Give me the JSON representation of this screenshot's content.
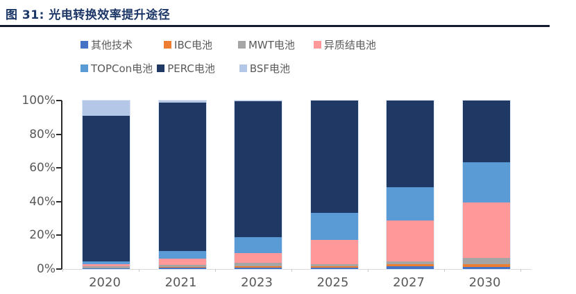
{
  "figure": {
    "title": "图 31:  光电转换效率提升途径"
  },
  "legend": {
    "rows": [
      [
        "其他技术",
        "IBC电池",
        "MWT电池",
        "异质结电池"
      ],
      [
        "TOPCon电池",
        "PERC电池",
        "BSF电池"
      ]
    ]
  },
  "colors": {
    "其他技术": "#4472C4",
    "IBC电池": "#ED7D31",
    "MWT电池": "#A5A5A5",
    "异质结电池": "#FF9999",
    "TOPCon电池": "#5B9BD5",
    "PERC电池": "#1F3864",
    "BSF电池": "#B4C7E7",
    "title": "#1C3667",
    "axis_text": "#595959"
  },
  "chart_data": {
    "type": "bar",
    "stacked": true,
    "title": "光电转换效率提升途径",
    "categories": [
      "2020",
      "2021",
      "2023",
      "2025",
      "2027",
      "2030"
    ],
    "series": [
      {
        "name": "其他技术",
        "color": "#4472C4",
        "values": [
          0.3,
          0.8,
          0.8,
          0.8,
          1.8,
          1.4
        ]
      },
      {
        "name": "IBC电池",
        "color": "#ED7D31",
        "values": [
          0.3,
          0.3,
          0.8,
          0.8,
          1.0,
          1.4
        ]
      },
      {
        "name": "MWT电池",
        "color": "#A5A5A5",
        "values": [
          1.0,
          1.2,
          2.0,
          1.2,
          1.6,
          3.7
        ]
      },
      {
        "name": "异质结电池",
        "color": "#FF9999",
        "values": [
          1.2,
          4.0,
          6.0,
          14.5,
          24.3,
          33.0
        ]
      },
      {
        "name": "TOPCon电池",
        "color": "#5B9BD5",
        "values": [
          1.7,
          4.5,
          9.5,
          16.0,
          19.8,
          24.0
        ]
      },
      {
        "name": "PERC电池",
        "color": "#1F3864",
        "values": [
          86.5,
          88.0,
          80.4,
          66.7,
          51.5,
          36.5
        ]
      },
      {
        "name": "BSF电池",
        "color": "#B4C7E7",
        "values": [
          9.0,
          1.2,
          0.5,
          0.0,
          0.0,
          0.0
        ]
      }
    ],
    "y_ticks": [
      "100%",
      "80%",
      "60%",
      "40%",
      "20%",
      "0%"
    ],
    "ylim": [
      0,
      100
    ],
    "unit": "%",
    "grid": false,
    "legend_position": "top"
  }
}
